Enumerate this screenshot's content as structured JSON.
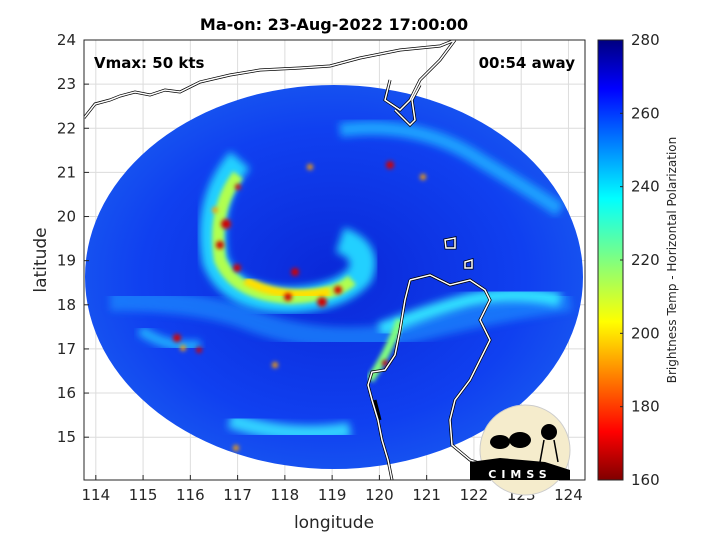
{
  "chart_data": {
    "type": "heatmap",
    "title": "Ma-on: 23-Aug-2022 17:00:00",
    "xlabel": "longitude",
    "ylabel": "latitude",
    "xlim": [
      113.75,
      124.35
    ],
    "ylim": [
      14.03,
      24
    ],
    "xticks": [
      114,
      115,
      116,
      117,
      118,
      119,
      120,
      121,
      122,
      123,
      124
    ],
    "yticks": [
      15,
      16,
      17,
      18,
      19,
      20,
      21,
      22,
      23,
      24
    ],
    "grid": true,
    "annotations": {
      "vmax": "Vmax: 50 kts",
      "time_away": "00:54 away"
    },
    "storm_center": {
      "lon": 118.8,
      "lat": 18.6
    },
    "colorbar": {
      "label": "Brightness Temp - Horizontal Polarization",
      "range": [
        160,
        280
      ],
      "ticks": [
        160,
        180,
        200,
        220,
        240,
        260,
        280
      ],
      "colormap": "jet",
      "placement": "right"
    }
  },
  "logo": "CIMSS"
}
